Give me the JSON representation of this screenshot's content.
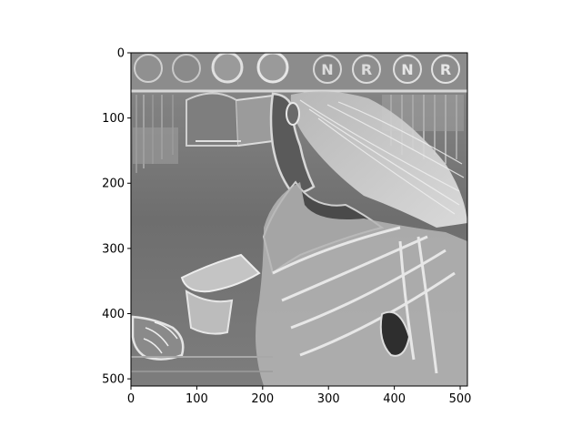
{
  "figure": {
    "image_description_tags": [
      "grayscale",
      "edge-filtered photo",
      "woman profile",
      "long hair",
      "raised hand"
    ],
    "colormap": "gray",
    "background": "#ffffff",
    "axes": {
      "x_ticks": [
        0,
        100,
        200,
        300,
        400,
        500
      ],
      "y_ticks": [
        0,
        100,
        200,
        300,
        400,
        500
      ],
      "xlim": [
        0,
        511
      ],
      "ylim": [
        511,
        0
      ],
      "grid": false
    },
    "top_circles": {
      "letters": [
        "N",
        "R",
        "N",
        "R"
      ]
    }
  }
}
